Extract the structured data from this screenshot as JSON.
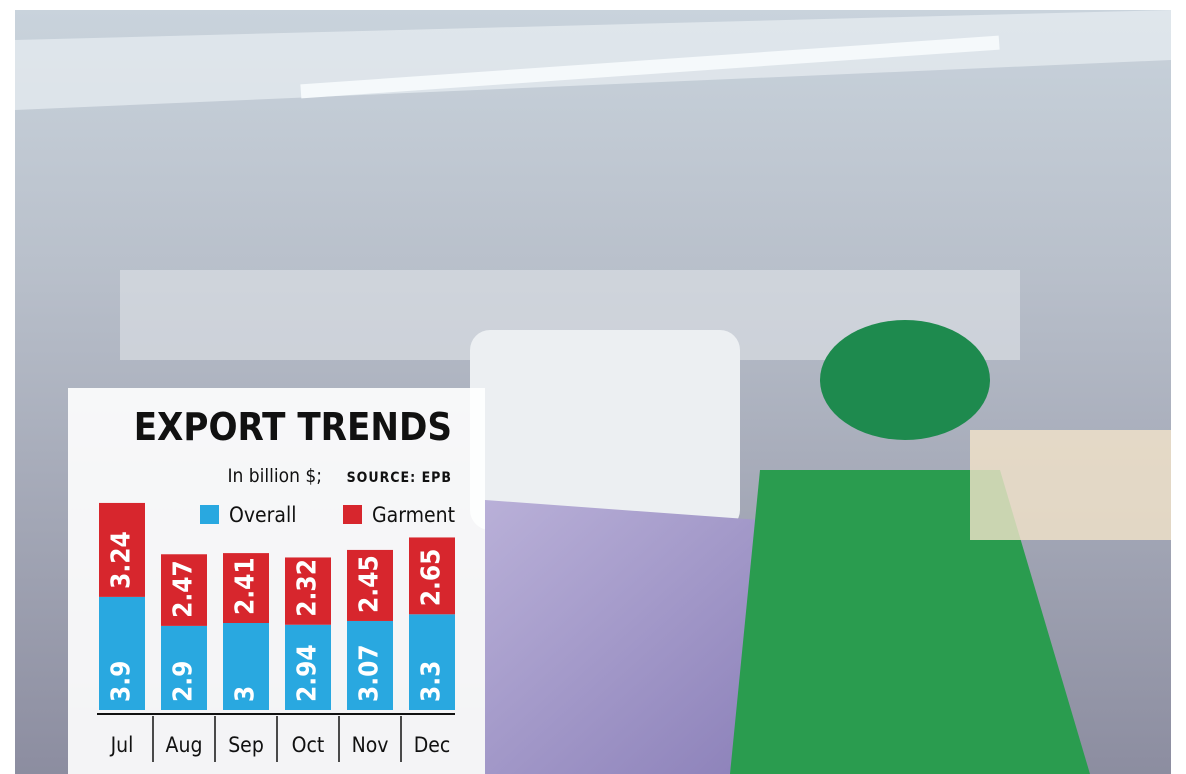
{
  "chart_data": {
    "type": "stacked_bar",
    "title": "EXPORT TRENDS",
    "subtitle": "In billion $;",
    "source": "SOURCE: EPB",
    "categories": [
      "Jul",
      "Aug",
      "Sep",
      "Oct",
      "Nov",
      "Dec"
    ],
    "series": [
      {
        "name": "Overall",
        "color": "#29a8e0",
        "values": [
          3.9,
          2.9,
          3,
          2.94,
          3.07,
          3.3
        ]
      },
      {
        "name": "Garment",
        "color": "#d7262d",
        "values": [
          3.24,
          2.47,
          2.41,
          2.32,
          2.45,
          2.65
        ]
      }
    ]
  }
}
